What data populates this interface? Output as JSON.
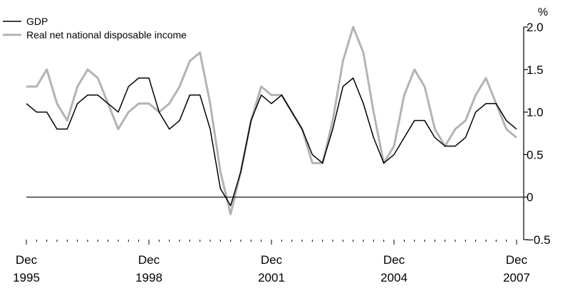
{
  "chart_data": {
    "type": "line",
    "title": "",
    "xlabel": "",
    "ylabel": "%",
    "ylim": [
      -0.5,
      2.0
    ],
    "yticks": [
      -0.5,
      0,
      0.5,
      1.0,
      1.5,
      2.0
    ],
    "ytick_labels": [
      "−0.5",
      "0",
      "0.5",
      "1.0",
      "1.5",
      "2.0"
    ],
    "x_start": "Dec 1995",
    "x_end": "Dec 2007",
    "frequency": "quarterly",
    "xtick_labels": [
      {
        "month": "Dec",
        "year": "1995"
      },
      {
        "month": "Dec",
        "year": "1998"
      },
      {
        "month": "Dec",
        "year": "2001"
      },
      {
        "month": "Dec",
        "year": "2004"
      },
      {
        "month": "Dec",
        "year": "2007"
      }
    ],
    "legend_position": "top-left",
    "zero_line": true,
    "grid": false,
    "series": [
      {
        "name": "GDP",
        "color": "#000000",
        "values": [
          1.1,
          1.0,
          1.0,
          0.8,
          0.8,
          1.1,
          1.2,
          1.2,
          1.1,
          1.0,
          1.3,
          1.4,
          1.4,
          1.0,
          0.8,
          0.9,
          1.2,
          1.2,
          0.8,
          0.1,
          -0.1,
          0.3,
          0.9,
          1.2,
          1.1,
          1.2,
          1.0,
          0.8,
          0.5,
          0.4,
          0.8,
          1.3,
          1.4,
          1.1,
          0.7,
          0.4,
          0.5,
          0.7,
          0.9,
          0.9,
          0.7,
          0.6,
          0.6,
          0.7,
          1.0,
          1.1,
          1.1,
          0.9,
          0.8
        ]
      },
      {
        "name": "Real net national disposable income",
        "color": "#b3b3b3",
        "values": [
          1.3,
          1.3,
          1.5,
          1.1,
          0.9,
          1.3,
          1.5,
          1.4,
          1.1,
          0.8,
          1.0,
          1.1,
          1.1,
          1.0,
          1.1,
          1.3,
          1.6,
          1.7,
          1.1,
          0.3,
          -0.2,
          0.3,
          0.9,
          1.3,
          1.2,
          1.2,
          1.0,
          0.8,
          0.4,
          0.4,
          0.9,
          1.6,
          2.0,
          1.7,
          1.0,
          0.4,
          0.6,
          1.2,
          1.5,
          1.3,
          0.8,
          0.6,
          0.8,
          0.9,
          1.2,
          1.4,
          1.1,
          0.8,
          0.7
        ]
      }
    ]
  }
}
